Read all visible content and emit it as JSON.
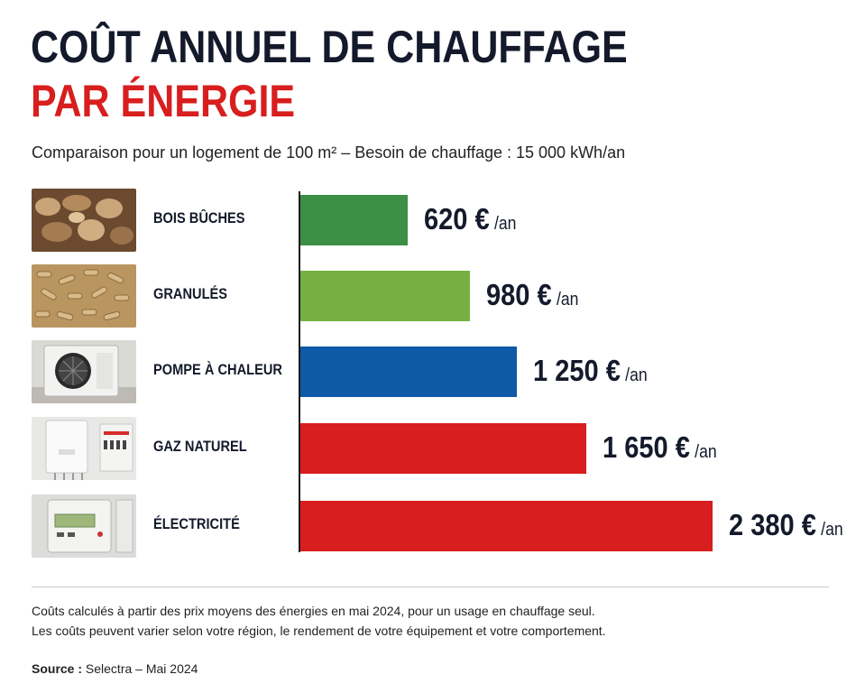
{
  "header": {
    "title_line1": "COÛT ANNUEL DE CHAUFFAGE",
    "title_line2": "PAR ÉNERGIE",
    "subtitle": "Comparaison pour un logement de 100 m² – Besoin de chauffage : 15 000 kWh/an"
  },
  "chart_data": {
    "type": "bar",
    "orientation": "horizontal",
    "categories": [
      "BOIS BÛCHES",
      "GRANULÉS",
      "POMPE À CHALEUR",
      "GAZ NATUREL",
      "ÉLECTRICITÉ"
    ],
    "values": [
      620,
      980,
      1250,
      1650,
      2380
    ],
    "value_labels": [
      "620 €",
      "980 €",
      "1 250 €",
      "1 650 €",
      "2 380 €"
    ],
    "unit_suffix": "/an",
    "bar_colors": [
      "#3c8f45",
      "#76b043",
      "#0e5aa7",
      "#d81e1e",
      "#d81e1e"
    ],
    "icons": [
      "firewood-icon",
      "pellets-icon",
      "heat-pump-icon",
      "gas-boiler-icon",
      "electric-meter-icon"
    ],
    "xlim": [
      0,
      2380
    ],
    "grid": false,
    "legend": "none"
  },
  "footer": {
    "note_line1": "Coûts calculés à partir des prix moyens des énergies en mai 2024, pour un usage en chauffage seul.",
    "note_line2": "Les coûts peuvent varier selon votre région, le rendement de votre équipement et votre comportement.",
    "source_label": "Source :",
    "source_text": "Selectra – Mai 2024"
  }
}
